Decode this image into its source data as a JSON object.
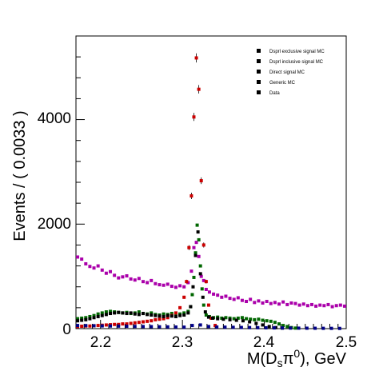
{
  "chart_data": {
    "type": "scatter",
    "title": "",
    "xlabel": "M(D",
    "xlabel_sub": "s",
    "xlabel_mid": "π",
    "xlabel_sup": "0",
    "xlabel_end": "), GeV",
    "ylabel": "Events / ( 0.0033 )",
    "xlim": [
      2.17,
      2.5
    ],
    "ylim": [
      0,
      5600
    ],
    "xticks": [
      "2.2",
      "2.3",
      "2.4",
      "2.5"
    ],
    "yticks": [
      "0",
      "2000",
      "4000"
    ],
    "grid": false,
    "legend_position": "top-right",
    "legend": [
      {
        "label": "Dsprl exclusive signal MC"
      },
      {
        "label": "Dsprl inclusive signal MC"
      },
      {
        "label": "Direct signal MC"
      },
      {
        "label": "Generic MC"
      },
      {
        "label": "Data"
      }
    ],
    "series": [
      {
        "color": "#aa00aa",
        "x": [
          2.172,
          2.177,
          2.182,
          2.187,
          2.192,
          2.197,
          2.202,
          2.207,
          2.212,
          2.217,
          2.222,
          2.227,
          2.232,
          2.237,
          2.242,
          2.247,
          2.252,
          2.257,
          2.262,
          2.267,
          2.272,
          2.277,
          2.282,
          2.287,
          2.292,
          2.297,
          2.302,
          2.307,
          2.311,
          2.314,
          2.317,
          2.32,
          2.323,
          2.326,
          2.329,
          2.333,
          2.338,
          2.343,
          2.348,
          2.353,
          2.358,
          2.363,
          2.368,
          2.373,
          2.378,
          2.383,
          2.388,
          2.393,
          2.398,
          2.403,
          2.408,
          2.413,
          2.418,
          2.423,
          2.428,
          2.433,
          2.438,
          2.443,
          2.448,
          2.453,
          2.458,
          2.463,
          2.468,
          2.473,
          2.478,
          2.483,
          2.488,
          2.493,
          2.498
        ],
        "y": [
          1370,
          1330,
          1240,
          1190,
          1160,
          1200,
          1120,
          1060,
          1090,
          1020,
          970,
          990,
          1010,
          950,
          930,
          960,
          900,
          880,
          920,
          860,
          840,
          830,
          850,
          810,
          790,
          820,
          800,
          880,
          1100,
          1550,
          1650,
          1380,
          1000,
          920,
          750,
          700,
          660,
          640,
          600,
          620,
          580,
          560,
          590,
          540,
          520,
          560,
          500,
          530,
          490,
          520,
          480,
          500,
          470,
          510,
          460,
          490,
          480,
          450,
          470,
          440,
          460,
          430,
          450,
          440,
          460,
          420,
          440,
          450,
          430
        ]
      },
      {
        "color": "#006600",
        "x": [
          2.172,
          2.177,
          2.182,
          2.187,
          2.192,
          2.197,
          2.202,
          2.207,
          2.212,
          2.217,
          2.222,
          2.227,
          2.232,
          2.237,
          2.242,
          2.247,
          2.252,
          2.257,
          2.262,
          2.267,
          2.272,
          2.277,
          2.282,
          2.287,
          2.292,
          2.297,
          2.302,
          2.307,
          2.31,
          2.312,
          2.314,
          2.316,
          2.318,
          2.32,
          2.322,
          2.324,
          2.326,
          2.329,
          2.333,
          2.338,
          2.343,
          2.348,
          2.353,
          2.358,
          2.363,
          2.368,
          2.373,
          2.378,
          2.383,
          2.388,
          2.393,
          2.398,
          2.403,
          2.408,
          2.413,
          2.418,
          2.423,
          2.428,
          2.433,
          2.438
        ],
        "y": [
          190,
          200,
          210,
          230,
          250,
          280,
          300,
          320,
          330,
          320,
          310,
          300,
          310,
          290,
          300,
          320,
          290,
          280,
          300,
          270,
          260,
          280,
          270,
          290,
          260,
          280,
          300,
          330,
          420,
          650,
          980,
          1450,
          1980,
          1700,
          1200,
          760,
          450,
          260,
          230,
          210,
          220,
          200,
          210,
          200,
          190,
          200,
          210,
          190,
          180,
          170,
          180,
          160,
          150,
          140,
          120,
          90,
          60,
          40,
          20,
          10
        ]
      },
      {
        "color": "#cc0000",
        "x": [
          2.172,
          2.177,
          2.182,
          2.187,
          2.192,
          2.197,
          2.202,
          2.207,
          2.212,
          2.217,
          2.222,
          2.227,
          2.232,
          2.237,
          2.242,
          2.247,
          2.252,
          2.257,
          2.262,
          2.267,
          2.272,
          2.277,
          2.282,
          2.287,
          2.292,
          2.297,
          2.302,
          2.305,
          2.308,
          2.311,
          2.314,
          2.317,
          2.32,
          2.323,
          2.326,
          2.329,
          2.332,
          2.335,
          2.34
        ],
        "y": [
          40,
          45,
          50,
          50,
          55,
          60,
          65,
          70,
          75,
          80,
          80,
          90,
          90,
          100,
          110,
          120,
          130,
          140,
          150,
          170,
          180,
          190,
          210,
          250,
          300,
          400,
          600,
          900,
          1550,
          2540,
          4050,
          5180,
          4580,
          2830,
          1600,
          900,
          450,
          200,
          60
        ]
      },
      {
        "color": "#000000",
        "x": [
          2.172,
          2.177,
          2.182,
          2.187,
          2.192,
          2.197,
          2.202,
          2.207,
          2.212,
          2.217,
          2.222,
          2.227,
          2.232,
          2.237,
          2.242,
          2.247,
          2.252,
          2.257,
          2.262,
          2.267,
          2.272,
          2.277,
          2.282,
          2.287,
          2.292,
          2.297,
          2.302,
          2.307,
          2.31,
          2.313,
          2.316,
          2.319,
          2.322,
          2.325,
          2.328,
          2.332,
          2.337,
          2.343,
          2.35,
          2.358,
          2.366,
          2.374,
          2.382,
          2.39,
          2.398,
          2.406,
          2.414,
          2.422
        ],
        "y": [
          150,
          160,
          170,
          190,
          210,
          230,
          250,
          270,
          290,
          300,
          310,
          300,
          290,
          300,
          280,
          270,
          290,
          270,
          260,
          250,
          240,
          230,
          250,
          240,
          230,
          250,
          260,
          300,
          420,
          800,
          1400,
          1850,
          1050,
          600,
          320,
          220,
          200,
          190,
          180,
          170,
          160,
          150,
          130,
          100,
          70,
          40,
          20,
          10
        ]
      },
      {
        "color": "#000088",
        "x": [
          2.172,
          2.182,
          2.192,
          2.202,
          2.212,
          2.222,
          2.232,
          2.242,
          2.252,
          2.262,
          2.272,
          2.282,
          2.292,
          2.302,
          2.312,
          2.322,
          2.332,
          2.342,
          2.352,
          2.362,
          2.372,
          2.382,
          2.392,
          2.402,
          2.412,
          2.422,
          2.432,
          2.442,
          2.452,
          2.462,
          2.472,
          2.482,
          2.492
        ],
        "y": [
          60,
          58,
          55,
          52,
          50,
          48,
          45,
          42,
          40,
          38,
          35,
          33,
          30,
          28,
          60,
          70,
          40,
          30,
          28,
          25,
          22,
          20,
          18,
          16,
          14,
          12,
          10,
          9,
          8,
          7,
          6,
          5,
          4
        ]
      }
    ]
  }
}
